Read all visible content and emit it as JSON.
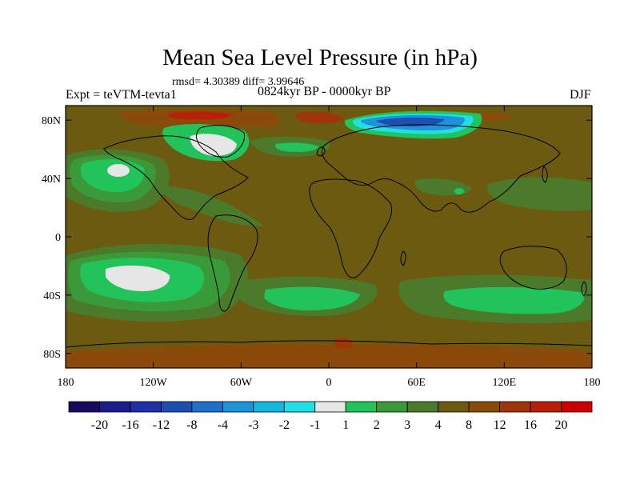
{
  "title": "Mean Sea Level Pressure (in hPa)",
  "stats_text": "rmsd= 4.30389 diff= 3.99646",
  "left_label": "Expt = teVTM-tevta1",
  "center_label": "0824kyr BP - 0000kyr BP",
  "right_label": "DJF",
  "lat_ticks": [
    "80N",
    "40N",
    "0",
    "40S",
    "80S"
  ],
  "lon_ticks": [
    "180",
    "120W",
    "60W",
    "0",
    "60E",
    "120E",
    "180"
  ],
  "colorbar": {
    "labels": [
      "-20",
      "-16",
      "-12",
      "-8",
      "-4",
      "-3",
      "-2",
      "-1",
      "1",
      "2",
      "3",
      "4",
      "8",
      "12",
      "16",
      "20"
    ],
    "colors": [
      "#1a0a5e",
      "#1c1c8a",
      "#1f2fa8",
      "#1e4fb0",
      "#2070c8",
      "#1f93d8",
      "#14b7e0",
      "#22dfe6",
      "#e6e6e6",
      "#22c35a",
      "#3a9a3a",
      "#4a7a2a",
      "#6b5a10",
      "#8a4a0a",
      "#a0340a",
      "#b82008",
      "#cc0000"
    ]
  },
  "chart_data": {
    "type": "heatmap",
    "variable": "Mean Sea Level Pressure difference (hPa)",
    "experiment": "teVTM-tevta1",
    "period": "0824kyr BP - 0000kyr BP",
    "season": "DJF",
    "rmsd": 4.30389,
    "diff": 3.99646,
    "x_range": [
      -180,
      180
    ],
    "y_range": [
      -90,
      90
    ],
    "contour_levels": [
      -20,
      -16,
      -12,
      -8,
      -4,
      -3,
      -2,
      -1,
      1,
      2,
      3,
      4,
      8,
      12,
      16,
      20
    ],
    "background_class": "4 to 8",
    "features": [
      {
        "name": "siberian-low",
        "level": "-20 to -1",
        "lon": 80,
        "lat": 72
      },
      {
        "name": "greenland-low",
        "level": "-1 to 2",
        "lon": -45,
        "lat": 68
      },
      {
        "name": "north-pacific-anomaly",
        "level": "-1 to 3",
        "lon": -160,
        "lat": 45
      },
      {
        "name": "south-pacific-anomaly",
        "level": "-1 to 3",
        "lon": -130,
        "lat": -35
      },
      {
        "name": "south-atlantic-anomaly",
        "level": "2 to 3",
        "lon": -20,
        "lat": -45
      },
      {
        "name": "south-indian-anomaly",
        "level": "2 to 3",
        "lon": 100,
        "lat": -45
      },
      {
        "name": "arctic-high",
        "level": "8 to 20",
        "lon": -60,
        "lat": 82
      }
    ]
  }
}
